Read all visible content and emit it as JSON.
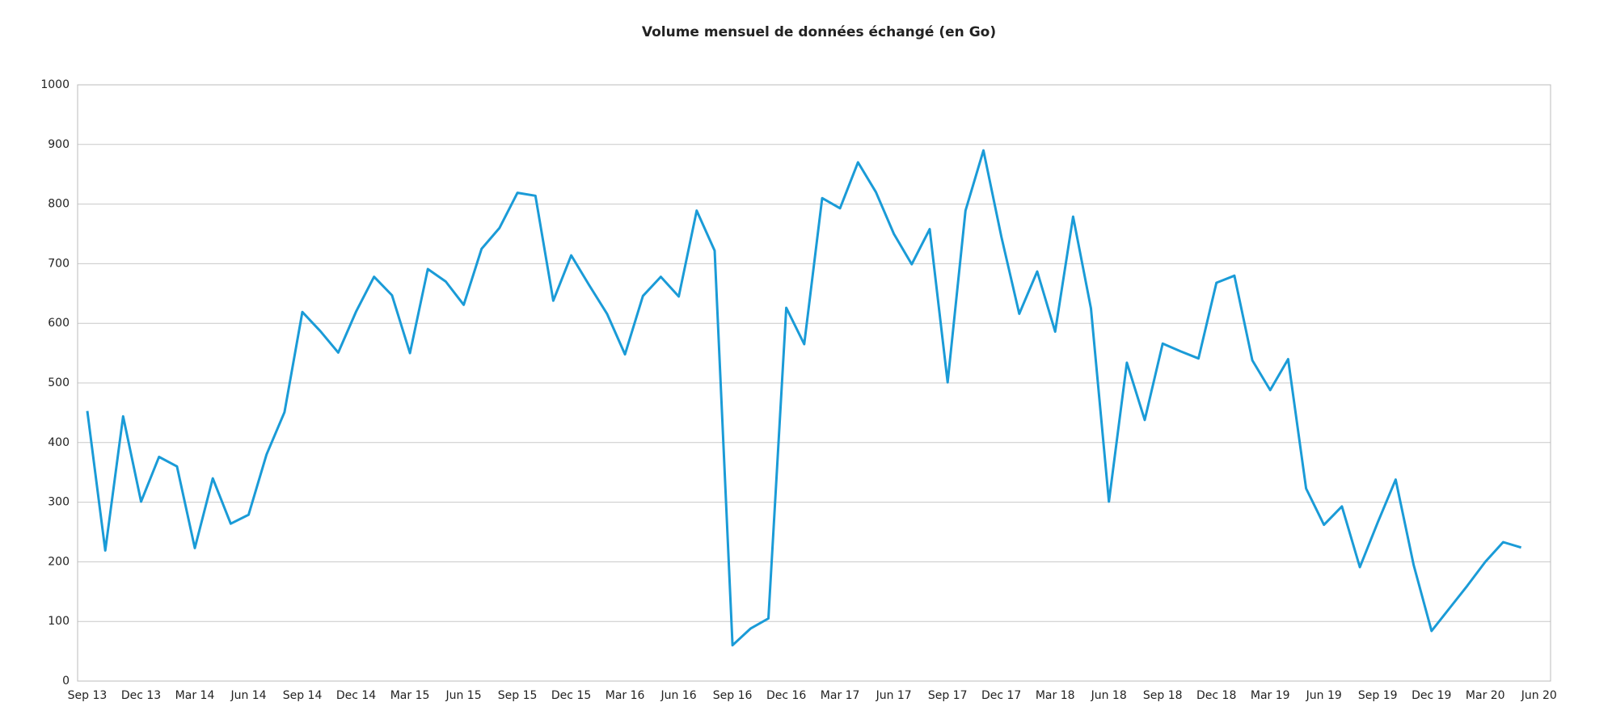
{
  "chart_data": {
    "type": "line",
    "title": "Volume mensuel de données échangé (en Go)",
    "categories": [
      "Sep 13",
      null,
      null,
      "Dec 13",
      null,
      null,
      "Mar 14",
      null,
      null,
      "Jun 14",
      null,
      null,
      "Sep 14",
      null,
      null,
      "Dec 14",
      null,
      null,
      "Mar 15",
      null,
      null,
      "Jun 15",
      null,
      null,
      "Sep 15",
      null,
      null,
      "Dec 15",
      null,
      null,
      "Mar 16",
      null,
      null,
      "Jun 16",
      null,
      null,
      "Sep 16",
      null,
      null,
      "Dec 16",
      null,
      null,
      "Mar 17",
      null,
      null,
      "Jun 17",
      null,
      null,
      "Sep 17",
      null,
      null,
      "Dec 17",
      null,
      null,
      "Mar 18",
      null,
      null,
      "Jun 18",
      null,
      null,
      "Sep 18",
      null,
      null,
      "Dec 18",
      null,
      null,
      "Mar 19",
      null,
      null,
      "Jun 19",
      null,
      null,
      "Sep 19",
      null,
      null,
      "Dec 19",
      null,
      null,
      "Mar 20",
      null,
      null,
      "Jun 20"
    ],
    "values": [
      453,
      219,
      444,
      301,
      376,
      360,
      223,
      340,
      264,
      279,
      380,
      451,
      619,
      587,
      551,
      620,
      678,
      647,
      550,
      691,
      670,
      631,
      725,
      760,
      819,
      814,
      638,
      714,
      664,
      616,
      548,
      646,
      678,
      645,
      789,
      722,
      60,
      88,
      105,
      626,
      565,
      810,
      793,
      870,
      820,
      750,
      699,
      758,
      501,
      789,
      890,
      745,
      616,
      687,
      586,
      779,
      625,
      301,
      534,
      438,
      566,
      553,
      541,
      668,
      680,
      538,
      488,
      540,
      323,
      262,
      293,
      191,
      266,
      338,
      195,
      84,
      122,
      160,
      200,
      233,
      224,
      null
    ],
    "color": "#1a9bd7",
    "ylim": [
      0,
      1000
    ],
    "yticks": [
      0,
      100,
      200,
      300,
      400,
      500,
      600,
      700,
      800,
      900,
      1000
    ],
    "grid": true
  }
}
